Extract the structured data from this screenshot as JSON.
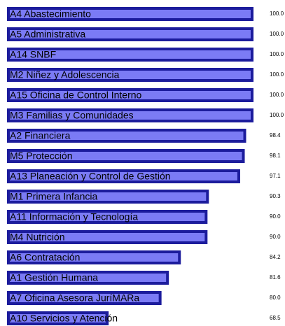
{
  "chart_data": {
    "type": "bar",
    "orientation": "horizontal",
    "categories": [
      "A4 Abastecimiento",
      "A5 Administrativa",
      "A14 SNBF",
      "M2 Niñez y Adolescencia",
      "A15 Oficina de Control Interno",
      "M3 Familias y Comunidades",
      "A2 Financiera",
      "M5 Protección",
      "A13 Planeación y Control de Gestión",
      "M1 Primera Infancia",
      "A11 Información y Tecnología",
      "M4 Nutrición",
      "A6 Contratación",
      "A1 Gestión Humana",
      "A7 Oficina Asesora JuríMARa",
      "A10 Servicios y Atención"
    ],
    "values": [
      100,
      100,
      100,
      100,
      100,
      100,
      98.4,
      98.1,
      97.1,
      90.3,
      90,
      90,
      84.2,
      81.6,
      80,
      68.5
    ],
    "value_labels": [
      "100.0",
      "100.0",
      "100.0",
      "100.0",
      "100.0",
      "100.0",
      "98.4",
      "98.1",
      "97.1",
      "90.3",
      "90.0",
      "90.0",
      "84.2",
      "81.6",
      "80.0",
      "68.5"
    ],
    "color": "#7b7bf5",
    "border_color": "#1c1c9c",
    "xlim": [
      46.4,
      100
    ]
  }
}
